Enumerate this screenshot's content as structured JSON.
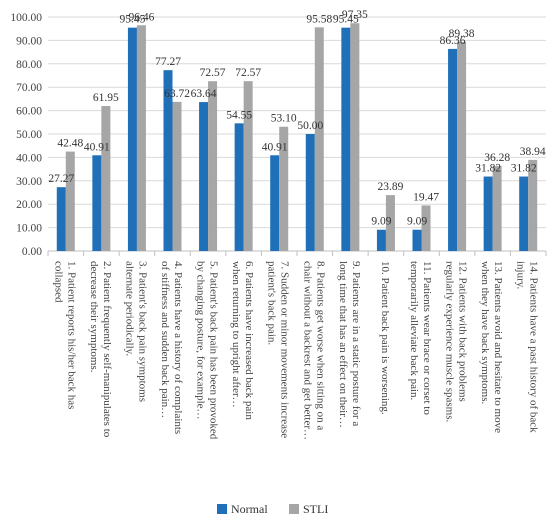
{
  "chart_data": {
    "type": "bar",
    "categories": [
      [
        "1. Patient reports his/her back has",
        "collapsed"
      ],
      [
        "2. Patient frequently self-manipulates to",
        "decrease their symptoms."
      ],
      [
        "3. Patient's back pain symptoms",
        "alternate periodically."
      ],
      [
        "4. Patients have a history of complaints",
        "of stiffness and sudden back pain…"
      ],
      [
        "5. Patient's back pain has been provoked",
        "by changing posture, for example…"
      ],
      [
        "6. Patients have increased back pain",
        "when returning to upright after…"
      ],
      [
        "7. Sudden or minor movements increase",
        "patient's back pain."
      ],
      [
        "8. Patients get worse when sitting on a",
        "chair without a backrest and get better…"
      ],
      [
        "9. Patients are in a static posture for a",
        "long time that has an effect on their…"
      ],
      [
        "10. Patient back pain is worsening."
      ],
      [
        "11. Patients wear brace or corset to",
        "temporarily alleviate back pain."
      ],
      [
        "12. Patients with back problems",
        "regularly experience muscle spasms."
      ],
      [
        "13. Patients avoid and hesitate to move",
        "when they have back symptoms."
      ],
      [
        "14. Patients have a past history of back",
        "injury."
      ]
    ],
    "series": [
      {
        "name": "Normal",
        "color": "#1f6fb9",
        "values": [
          27.27,
          40.91,
          95.45,
          77.27,
          63.64,
          54.55,
          40.91,
          50.0,
          95.45,
          9.09,
          9.09,
          86.36,
          31.82,
          31.82
        ],
        "labels": [
          "27.27",
          "40.91",
          "95.45",
          "77.27",
          "63.64",
          "54.55",
          "40.91",
          "50.00",
          "95.45",
          "9.09",
          "9.09",
          "86.36",
          "31.82",
          "31.82"
        ]
      },
      {
        "name": "STLI",
        "color": "#a6a6a6",
        "values": [
          42.48,
          61.95,
          96.46,
          63.72,
          72.57,
          72.57,
          53.1,
          95.58,
          97.35,
          23.89,
          19.47,
          89.38,
          36.28,
          38.94
        ],
        "labels": [
          "42.48",
          "61.95",
          "96.46",
          "63.72",
          "72.57",
          "72.57",
          "53.10",
          "95.58",
          "97.35",
          "23.89",
          "19.47",
          "89.38",
          "36.28",
          "38.94"
        ]
      }
    ],
    "ylim": [
      0,
      100
    ],
    "yticks": [
      "0.00",
      "10.00",
      "20.00",
      "30.00",
      "40.00",
      "50.00",
      "60.00",
      "70.00",
      "80.00",
      "90.00",
      "100.00"
    ],
    "grid": true,
    "legend": "bottom",
    "title": "",
    "xlabel": "",
    "ylabel": ""
  }
}
